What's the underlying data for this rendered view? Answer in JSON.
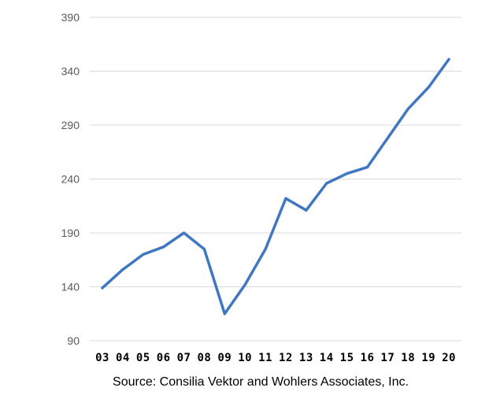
{
  "chart_data": {
    "type": "line",
    "title": "",
    "xlabel": "",
    "ylabel": "",
    "categories": [
      "03",
      "04",
      "05",
      "06",
      "07",
      "08",
      "09",
      "10",
      "11",
      "12",
      "13",
      "14",
      "15",
      "16",
      "17",
      "18",
      "19",
      "20"
    ],
    "series": [
      {
        "values": [
          139,
          156,
          170,
          177,
          190,
          175,
          115,
          142,
          175,
          222,
          211,
          236,
          245,
          251,
          278,
          305,
          325,
          351
        ],
        "color": "#4177c1"
      }
    ],
    "yticks": [
      90,
      140,
      190,
      240,
      290,
      340,
      390
    ],
    "ylim": [
      90,
      390
    ],
    "grid": "horizontal",
    "legend": "none"
  },
  "source": "Source: Consilia Vektor and Wohlers Associates, Inc."
}
